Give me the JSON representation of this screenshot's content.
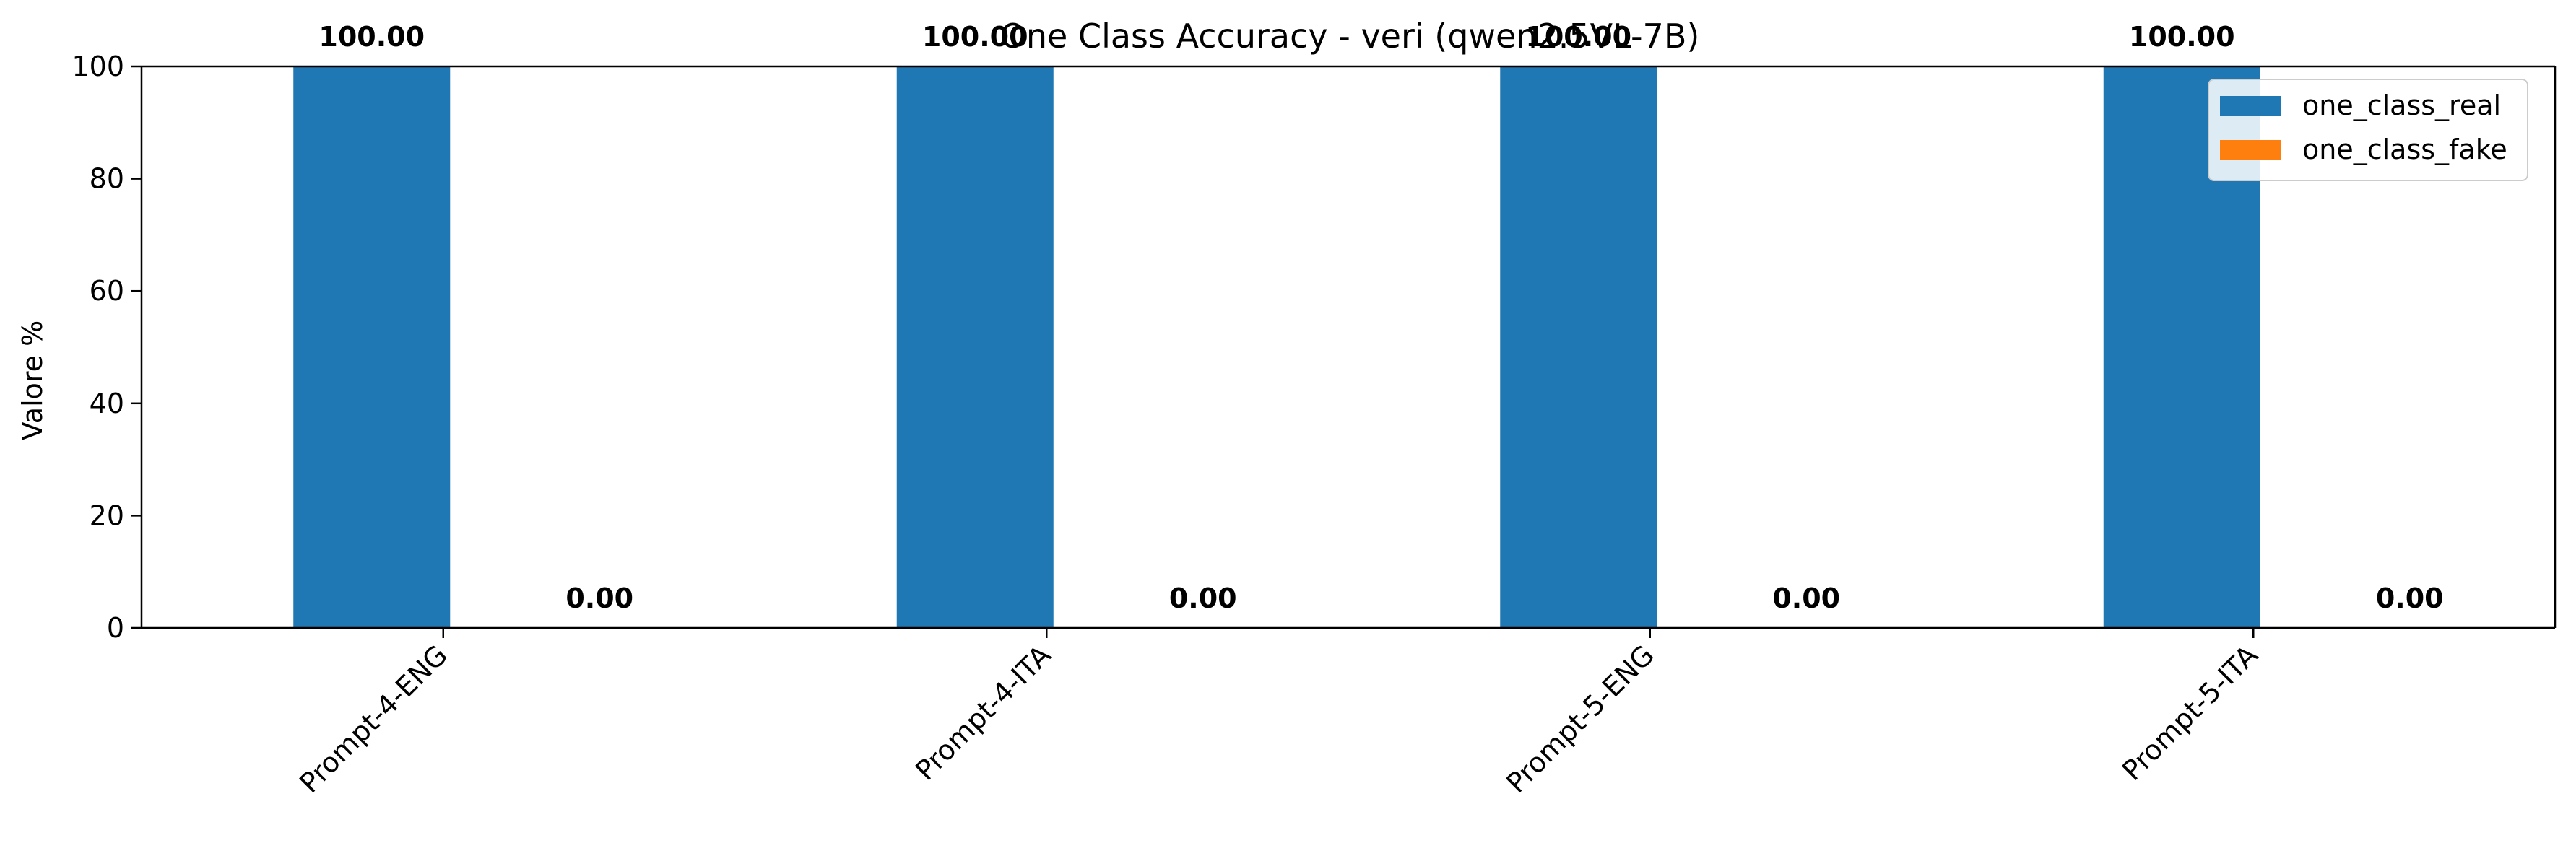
{
  "chart_data": {
    "type": "bar",
    "title": "One Class Accuracy - veri (qwen2.5VL-7B)",
    "xlabel": "",
    "ylabel": "Valore %",
    "ylim": [
      0,
      100
    ],
    "yticks": [
      0,
      20,
      40,
      60,
      80,
      100
    ],
    "categories": [
      "Prompt-4-ENG",
      "Prompt-4-ITA",
      "Prompt-5-ENG",
      "Prompt-5-ITA"
    ],
    "series": [
      {
        "name": "one_class_real",
        "color": "#1f77b4",
        "values": [
          100.0,
          100.0,
          100.0,
          100.0
        ]
      },
      {
        "name": "one_class_fake",
        "color": "#ff7f0e",
        "values": [
          0.0,
          0.0,
          0.0,
          0.0
        ]
      }
    ],
    "data_labels": true,
    "grid": false,
    "legend_position": "top-right"
  }
}
